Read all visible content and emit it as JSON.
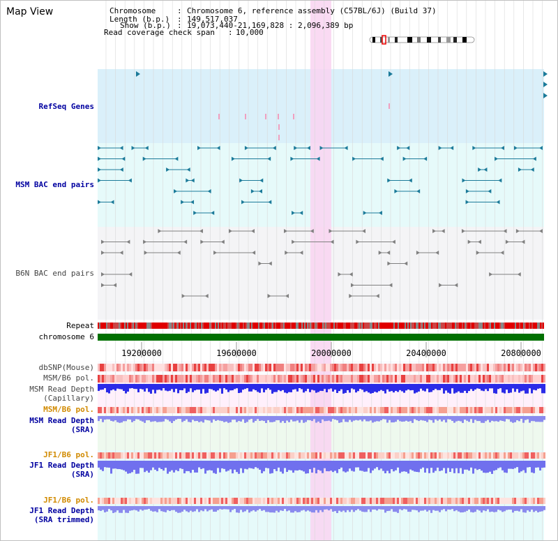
{
  "app": {
    "title": "Map View"
  },
  "info": {
    "chromosome_label": "Chromosome",
    "chromosome_value": "Chromosome 6, reference assembly (C57BL/6J) (Build 37)",
    "length_label": "Length (b.p.)",
    "length_value": "149,517,037",
    "show_label": "Show (b.p.)",
    "show_value": "19,073,440-21,169,828 : 2,096,389 bp",
    "coverage_label": "Read coverage check span",
    "coverage_value": "10,000"
  },
  "tracks": {
    "refseq": "RefSeq Genes",
    "msm_bac": "MSM BAC end pairs",
    "b6n_bac": "B6N BAC end pairs",
    "repeat": "Repeat",
    "chromosome": "chromosome 6",
    "dbsnp": "dbSNP(Mouse)",
    "msm_b6_pol_1": "MSM/B6 pol.",
    "msm_read_depth_cap_1": "MSM Read Depth",
    "msm_read_depth_cap_2": "(Capillary)",
    "msm_b6_pol_2": "MSM/B6 pol.",
    "msm_read_depth_sra_1": "MSM Read Depth",
    "msm_read_depth_sra_2": "(SRA)",
    "jf1_b6_pol_1": "JF1/B6 pol.",
    "jf1_read_depth_sra_1": "JF1 Read Depth",
    "jf1_read_depth_sra_2": "(SRA)",
    "jf1_b6_pol_2": "JF1/B6 pol.",
    "jf1_read_depth_trim_1": "JF1 Read Depth",
    "jf1_read_depth_trim_2": "(SRA trimmed)"
  },
  "axis": {
    "ticks": [
      "19200000",
      "19600000",
      "20000000",
      "20400000",
      "20800000"
    ]
  },
  "colors": {
    "refseq_bg": "#daf0fa",
    "msm_bac_bg": "#e6fafa",
    "b6n_bac_bg": "#f4f4f6",
    "highlight": "#f9d3f1",
    "chromosome": "#007000",
    "msm_feature": "#1b7a99",
    "b6n_feature": "#808080"
  }
}
